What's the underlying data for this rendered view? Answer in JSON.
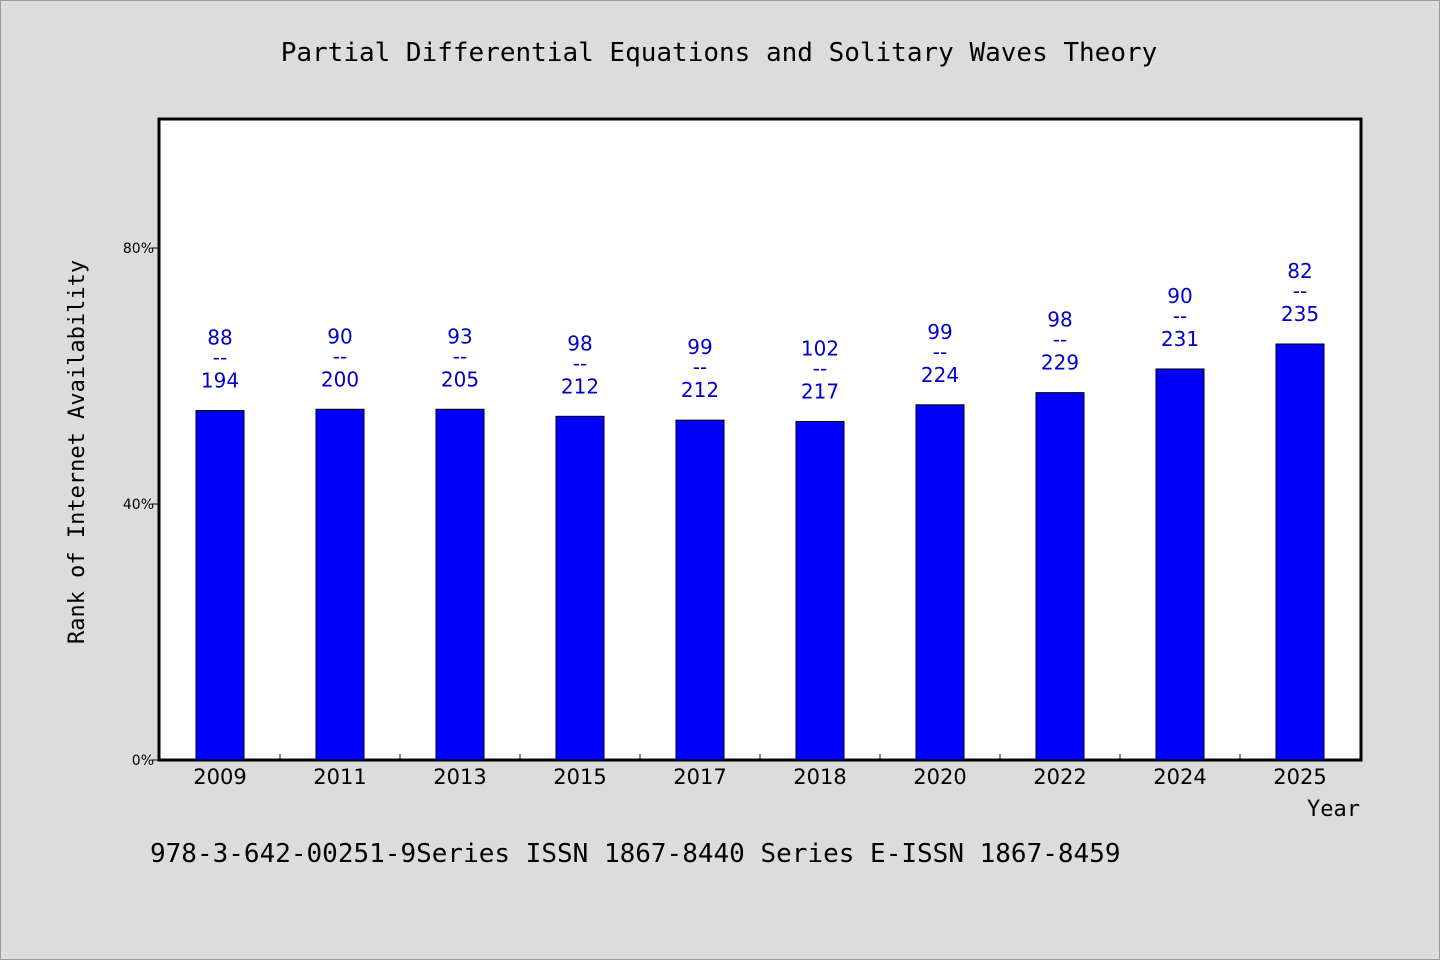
{
  "chart_data": {
    "type": "bar",
    "title": "Partial Differential Equations and Solitary Waves Theory",
    "xlabel": "Year",
    "ylabel": "Rank of Internet Availability",
    "footer": "978-3-642-00251-9Series ISSN 1867-8440 Series E-ISSN 1867-8459",
    "categories": [
      "2009",
      "2011",
      "2013",
      "2015",
      "2017",
      "2018",
      "2020",
      "2022",
      "2024",
      "2025"
    ],
    "values": [
      54.6,
      54.8,
      54.8,
      53.7,
      53.1,
      52.9,
      55.5,
      57.4,
      61.1,
      65.0
    ],
    "ranks": [
      "88",
      "90",
      "93",
      "98",
      "99",
      "102",
      "99",
      "98",
      "90",
      "82"
    ],
    "totals": [
      "194",
      "200",
      "205",
      "212",
      "212",
      "217",
      "224",
      "229",
      "231",
      "235"
    ],
    "separator": "--",
    "yticks": [
      "0%",
      "40%",
      "80%"
    ],
    "ytick_values": [
      0,
      40,
      80
    ],
    "ylim": [
      0,
      100
    ],
    "bar_color": "#0000ff",
    "label_color": "#0000cc",
    "background": "#dcdcdc",
    "plot_background": "#ffffff",
    "grid": false
  }
}
